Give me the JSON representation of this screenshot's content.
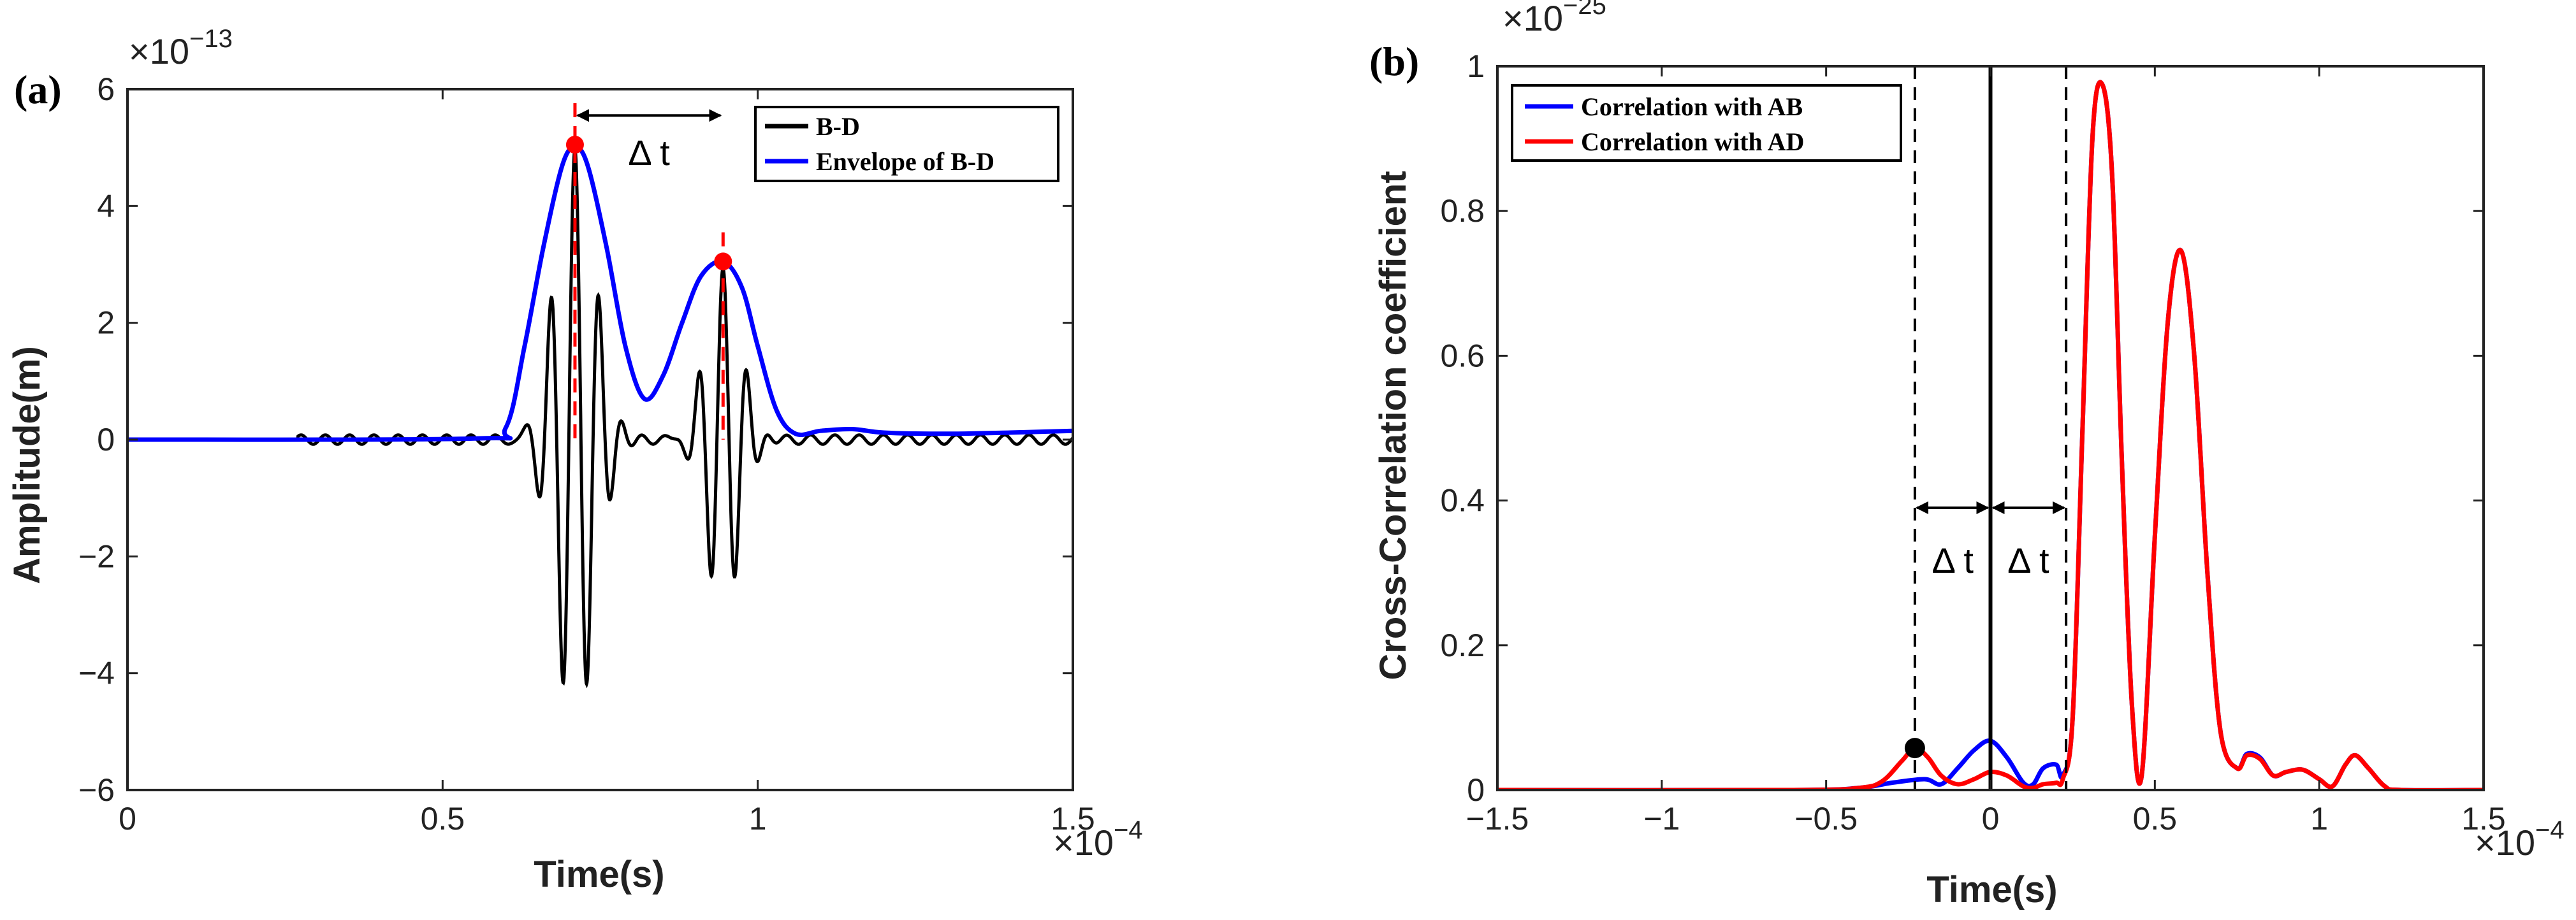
{
  "chart_data": [
    {
      "type": "line",
      "panel_label": "(a)",
      "xlabel": "Time(s)",
      "ylabel": "Amplitude(m)",
      "x_exponent": "×10",
      "x_exponent_power": "−4",
      "y_exponent": "×10",
      "y_exponent_power": "−13",
      "xlim": [
        0,
        1.5
      ],
      "ylim": [
        -6,
        6
      ],
      "x_ticks": [
        0,
        0.5,
        1,
        1.5
      ],
      "x_tick_labels": [
        "0",
        "0.5",
        "1",
        "1.5"
      ],
      "y_ticks": [
        -6,
        -4,
        -2,
        0,
        2,
        4,
        6
      ],
      "y_tick_labels": [
        "−6",
        "−4",
        "−2",
        "0",
        "2",
        "4",
        "6"
      ],
      "grid": false,
      "legend": {
        "placement": "top-right",
        "entries": [
          {
            "label": "B-D",
            "color": "#000000"
          },
          {
            "label": "Envelope of B-D",
            "color": "#0000ff"
          }
        ]
      },
      "annotations": {
        "delta_t_label": "Δ t",
        "peak_markers": [
          {
            "x": 0.71,
            "y": 5.05
          },
          {
            "x": 0.945,
            "y": 3.05
          }
        ],
        "dashed_lines_x": [
          0.71,
          0.945
        ],
        "marker_color": "#ff0000"
      },
      "series": [
        {
          "name": "B-D",
          "color": "#000000",
          "model": "sum of two Gaussian-modulated sinusoids",
          "packets": [
            {
              "center": 0.71,
              "amplitude": 5.0,
              "width": 0.045
            },
            {
              "center": 0.945,
              "amplitude": 3.0,
              "width": 0.04
            }
          ],
          "carrier_period": 0.0385,
          "noise_start": 0.27,
          "noise_amplitude": 0.08
        },
        {
          "name": "Envelope of B-D",
          "color": "#0000ff",
          "x": [
            0,
            0.55,
            0.6,
            0.63,
            0.66,
            0.69,
            0.71,
            0.73,
            0.76,
            0.79,
            0.82,
            0.85,
            0.88,
            0.91,
            0.945,
            0.975,
            1.0,
            1.03,
            1.06,
            1.1,
            1.15,
            1.2,
            1.3,
            1.4,
            1.5
          ],
          "values": [
            0,
            0.02,
            0.2,
            1.6,
            3.3,
            4.7,
            5.0,
            4.7,
            3.3,
            1.6,
            0.7,
            1.1,
            2.0,
            2.8,
            3.05,
            2.6,
            1.6,
            0.5,
            0.1,
            0.15,
            0.18,
            0.12,
            0.1,
            0.12,
            0.15
          ]
        }
      ]
    },
    {
      "type": "line",
      "panel_label": "(b)",
      "xlabel": "Time(s)",
      "ylabel": "Cross-Correlation coefficient",
      "x_exponent": "×10",
      "x_exponent_power": "−4",
      "y_exponent": "×10",
      "y_exponent_power": "−25",
      "xlim": [
        -1.5,
        1.5
      ],
      "ylim": [
        0,
        1
      ],
      "x_ticks": [
        -1.5,
        -1,
        -0.5,
        0,
        0.5,
        1,
        1.5
      ],
      "x_tick_labels": [
        "−1.5",
        "−1",
        "−0.5",
        "0",
        "0.5",
        "1",
        "1.5"
      ],
      "y_ticks": [
        0,
        0.2,
        0.4,
        0.6,
        0.8,
        1
      ],
      "y_tick_labels": [
        "0",
        "0.2",
        "0.4",
        "0.6",
        "0.8",
        "1"
      ],
      "grid": false,
      "legend": {
        "placement": "top-left",
        "entries": [
          {
            "label": "Correlation with AB",
            "color": "#0000ff"
          },
          {
            "label": "Correlation with AD",
            "color": "#ff0000"
          }
        ]
      },
      "annotations": {
        "delta_t_label": "Δ t",
        "dashed_lines_x": [
          -0.23,
          0.23
        ],
        "solid_line_x": 0,
        "marker": {
          "x": -0.23,
          "y": 0.058,
          "color": "#000000"
        }
      },
      "series": [
        {
          "name": "Correlation with AB",
          "color": "#0000ff",
          "x": [
            -1.5,
            -0.6,
            -0.4,
            -0.3,
            -0.2,
            -0.15,
            -0.1,
            -0.05,
            0,
            0.05,
            0.1,
            0.13,
            0.16,
            0.2,
            0.22,
            0.25,
            0.28,
            0.31,
            0.34,
            0.37,
            0.4,
            0.43,
            0.46,
            0.5,
            0.54,
            0.58,
            0.62,
            0.66,
            0.7,
            0.75,
            0.78,
            0.82,
            0.86,
            0.9,
            0.95,
            1.0,
            1.04,
            1.08,
            1.11,
            1.15,
            1.2,
            1.25,
            1.5
          ],
          "values": [
            0,
            0,
            0.003,
            0.01,
            0.015,
            0.008,
            0.03,
            0.055,
            0.068,
            0.045,
            0.01,
            0.008,
            0.03,
            0.035,
            0.02,
            0.1,
            0.5,
            0.9,
            0.975,
            0.85,
            0.45,
            0.12,
            0.02,
            0.35,
            0.65,
            0.745,
            0.6,
            0.3,
            0.08,
            0.03,
            0.05,
            0.045,
            0.02,
            0.025,
            0.028,
            0.015,
            0.005,
            0.035,
            0.048,
            0.03,
            0.005,
            0,
            0
          ]
        },
        {
          "name": "Correlation with AD",
          "color": "#ff0000",
          "x": [
            -1.5,
            -0.6,
            -0.4,
            -0.33,
            -0.27,
            -0.23,
            -0.19,
            -0.15,
            -0.1,
            -0.05,
            0,
            0.05,
            0.1,
            0.13,
            0.16,
            0.2,
            0.22,
            0.25,
            0.28,
            0.31,
            0.34,
            0.37,
            0.4,
            0.43,
            0.46,
            0.5,
            0.54,
            0.58,
            0.62,
            0.66,
            0.7,
            0.75,
            0.78,
            0.82,
            0.86,
            0.9,
            0.95,
            1.0,
            1.04,
            1.08,
            1.11,
            1.15,
            1.2,
            1.25,
            1.5
          ],
          "values": [
            0,
            0,
            0.003,
            0.012,
            0.04,
            0.058,
            0.045,
            0.02,
            0.008,
            0.015,
            0.025,
            0.02,
            0.005,
            0.003,
            0.008,
            0.01,
            0.015,
            0.1,
            0.5,
            0.9,
            0.975,
            0.85,
            0.45,
            0.12,
            0.02,
            0.35,
            0.65,
            0.745,
            0.6,
            0.3,
            0.08,
            0.03,
            0.048,
            0.043,
            0.02,
            0.025,
            0.028,
            0.015,
            0.005,
            0.035,
            0.048,
            0.03,
            0.005,
            0,
            0
          ]
        }
      ]
    }
  ]
}
